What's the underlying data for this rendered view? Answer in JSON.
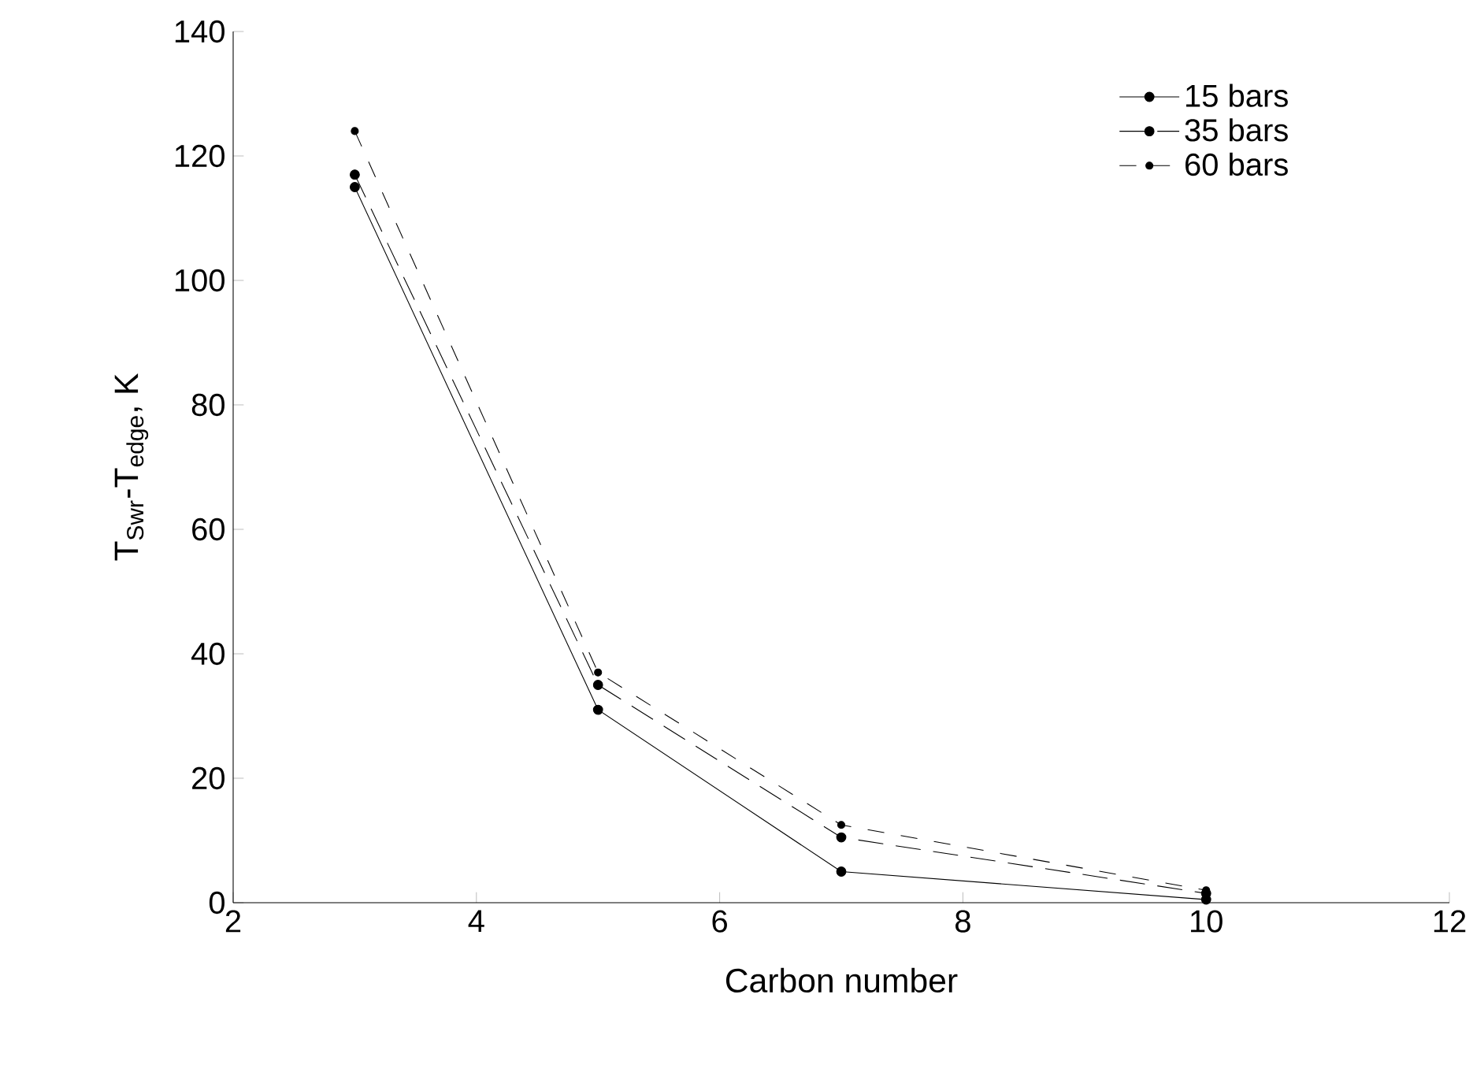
{
  "chart_data": {
    "type": "line",
    "xlabel": "Carbon number",
    "ylabel": "T$_{Swr}$-T$_{edge}$, K",
    "x": [
      3,
      5,
      7,
      10
    ],
    "series": [
      {
        "name": "15 bars",
        "color": "#000000",
        "line_style": "solid",
        "values": [
          115,
          31,
          5,
          0.5
        ]
      },
      {
        "name": "35 bars",
        "color": "#000000",
        "line_style": "dashed",
        "values": [
          117,
          35,
          10.5,
          1.5
        ]
      },
      {
        "name": "60 bars",
        "color": "#000000",
        "line_style": "dashed",
        "values": [
          124,
          37,
          12.5,
          2
        ]
      }
    ],
    "xlim": [
      2,
      12
    ],
    "xticks": [
      2,
      4,
      6,
      8,
      10,
      12
    ],
    "ylim": [
      0,
      140
    ],
    "yticks": [
      0,
      20,
      40,
      60,
      80,
      100,
      120,
      140
    ],
    "grid": false,
    "legend": "top right",
    "marker": "circle"
  }
}
